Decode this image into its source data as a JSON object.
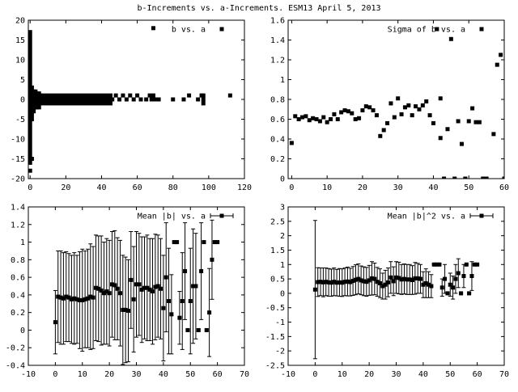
{
  "page_title": "b-Increments vs. a-Increments. ESM13 April 5, 2013",
  "chart_data": [
    {
      "type": "scatter",
      "title": "b vs. a",
      "legend_position": "top-right",
      "legend_marker_only": true,
      "xlim": [
        -1,
        120
      ],
      "ylim": [
        -20,
        20
      ],
      "xticks": [
        0,
        20,
        40,
        60,
        80,
        100,
        120
      ],
      "yticks": [
        -20,
        -15,
        -10,
        -5,
        0,
        5,
        10,
        15,
        20
      ],
      "grid": false,
      "series": [
        {
          "name": "b vs. a",
          "dense_columns": [
            {
              "x": 0,
              "ymin": -16,
              "ymax": 17
            },
            {
              "x": 1,
              "ymin": -5,
              "ymax": 3
            },
            {
              "x": 2,
              "ymin": -3,
              "ymax": 2
            },
            {
              "x": 3,
              "ymin": -2,
              "ymax": 2
            },
            {
              "x": 4,
              "ymin": -2,
              "ymax": 1.5
            },
            {
              "x": 5,
              "ymin": -2,
              "ymax": 1.5
            }
          ],
          "band": {
            "xmin": 5,
            "xmax": 45,
            "ymin": -1,
            "ymax": 1
          },
          "points": [
            [
              0,
              -18
            ],
            [
              1,
              -15
            ],
            [
              0,
              2
            ],
            [
              2,
              -1
            ],
            [
              69,
              18
            ],
            [
              46,
              0
            ],
            [
              48,
              1
            ],
            [
              50,
              0
            ],
            [
              52,
              1
            ],
            [
              54,
              0
            ],
            [
              56,
              1
            ],
            [
              58,
              0
            ],
            [
              60,
              1
            ],
            [
              62,
              0
            ],
            [
              65,
              0
            ],
            [
              67,
              1
            ],
            [
              68,
              0
            ],
            [
              69,
              1
            ],
            [
              70,
              0
            ],
            [
              72,
              0
            ],
            [
              80,
              0
            ],
            [
              86,
              0
            ],
            [
              89,
              1
            ],
            [
              94,
              0
            ],
            [
              96,
              1
            ],
            [
              97,
              0
            ],
            [
              97,
              -1
            ],
            [
              97,
              1
            ],
            [
              112,
              1
            ]
          ]
        }
      ]
    },
    {
      "type": "scatter",
      "title": "Sigma of b vs. a",
      "legend_position": "top-right",
      "legend_marker_only": true,
      "xlim": [
        -1,
        60
      ],
      "ylim": [
        0,
        1.6
      ],
      "xticks": [
        0,
        10,
        20,
        30,
        40,
        50,
        60
      ],
      "yticks": [
        0,
        0.2,
        0.4,
        0.6,
        0.8,
        1,
        1.2,
        1.4,
        1.6
      ],
      "grid": false,
      "series": [
        {
          "name": "Sigma of b vs. a",
          "points": [
            [
              0,
              0.36
            ],
            [
              1,
              0.63
            ],
            [
              2,
              0.6
            ],
            [
              3,
              0.62
            ],
            [
              4,
              0.63
            ],
            [
              5,
              0.59
            ],
            [
              6,
              0.61
            ],
            [
              7,
              0.6
            ],
            [
              8,
              0.58
            ],
            [
              9,
              0.62
            ],
            [
              10,
              0.57
            ],
            [
              11,
              0.6
            ],
            [
              12,
              0.65
            ],
            [
              13,
              0.6
            ],
            [
              14,
              0.67
            ],
            [
              15,
              0.69
            ],
            [
              16,
              0.68
            ],
            [
              17,
              0.66
            ],
            [
              18,
              0.6
            ],
            [
              19,
              0.61
            ],
            [
              20,
              0.69
            ],
            [
              21,
              0.73
            ],
            [
              22,
              0.72
            ],
            [
              23,
              0.69
            ],
            [
              24,
              0.64
            ],
            [
              25,
              0.43
            ],
            [
              26,
              0.49
            ],
            [
              27,
              0.56
            ],
            [
              28,
              0.76
            ],
            [
              29,
              0.62
            ],
            [
              30,
              0.81
            ],
            [
              31,
              0.65
            ],
            [
              32,
              0.72
            ],
            [
              33,
              0.74
            ],
            [
              34,
              0.64
            ],
            [
              35,
              0.73
            ],
            [
              36,
              0.7
            ],
            [
              37,
              0.74
            ],
            [
              38,
              0.78
            ],
            [
              39,
              0.64
            ],
            [
              40,
              0.56
            ],
            [
              41,
              1.51
            ],
            [
              42,
              0.81
            ],
            [
              42,
              0.41
            ],
            [
              43,
              0.0
            ],
            [
              44,
              0.5
            ],
            [
              45,
              1.41
            ],
            [
              46,
              0.0
            ],
            [
              47,
              0.58
            ],
            [
              48,
              0.35
            ],
            [
              49,
              0.0
            ],
            [
              50,
              0.58
            ],
            [
              51,
              0.71
            ],
            [
              52,
              0.57
            ],
            [
              53,
              0.57
            ],
            [
              54,
              0.0
            ],
            [
              55,
              0.0
            ],
            [
              57,
              0.45
            ],
            [
              58,
              1.15
            ],
            [
              59,
              1.25
            ],
            [
              60,
              0.0
            ]
          ]
        }
      ]
    },
    {
      "type": "scatter",
      "title": "",
      "legend_position": "top-right",
      "xlim": [
        -10,
        70
      ],
      "ylim": [
        -0.4,
        1.4
      ],
      "xticks": [
        -10,
        0,
        10,
        20,
        30,
        40,
        50,
        60,
        70
      ],
      "yticks": [
        -0.4,
        -0.2,
        0,
        0.2,
        0.4,
        0.6,
        0.8,
        1,
        1.2,
        1.4
      ],
      "grid": false,
      "series": [
        {
          "name": "Mean |b| vs. a",
          "error_bars": true,
          "points": [
            [
              0,
              0.09,
              0.36
            ],
            [
              1,
              0.38,
              0.52
            ],
            [
              2,
              0.37,
              0.53
            ],
            [
              3,
              0.36,
              0.52
            ],
            [
              4,
              0.38,
              0.51
            ],
            [
              5,
              0.37,
              0.5
            ],
            [
              6,
              0.35,
              0.5
            ],
            [
              7,
              0.36,
              0.52
            ],
            [
              8,
              0.35,
              0.5
            ],
            [
              9,
              0.34,
              0.55
            ],
            [
              10,
              0.34,
              0.58
            ],
            [
              11,
              0.35,
              0.55
            ],
            [
              12,
              0.36,
              0.56
            ],
            [
              13,
              0.38,
              0.6
            ],
            [
              14,
              0.37,
              0.58
            ],
            [
              15,
              0.48,
              0.6
            ],
            [
              16,
              0.47,
              0.6
            ],
            [
              17,
              0.45,
              0.62
            ],
            [
              18,
              0.42,
              0.58
            ],
            [
              19,
              0.44,
              0.6
            ],
            [
              20,
              0.42,
              0.6
            ],
            [
              21,
              0.52,
              0.6
            ],
            [
              22,
              0.51,
              0.62
            ],
            [
              23,
              0.47,
              0.58
            ],
            [
              24,
              0.42,
              0.6
            ],
            [
              25,
              0.23,
              0.62
            ],
            [
              26,
              0.23,
              0.6
            ],
            [
              27,
              0.22,
              0.58
            ],
            [
              28,
              0.57,
              0.55
            ],
            [
              29,
              0.35,
              0.6
            ],
            [
              30,
              0.52,
              0.6
            ],
            [
              31,
              0.52,
              0.58
            ],
            [
              32,
              0.46,
              0.6
            ],
            [
              33,
              0.48,
              0.58
            ],
            [
              34,
              0.48,
              0.6
            ],
            [
              35,
              0.46,
              0.58
            ],
            [
              36,
              0.44,
              0.6
            ],
            [
              37,
              0.49,
              0.6
            ],
            [
              38,
              0.5,
              0.58
            ],
            [
              39,
              0.47,
              0.57
            ],
            [
              40,
              0.25,
              0.6
            ],
            [
              41,
              0.6,
              0.62
            ],
            [
              42,
              0.33,
              0.6
            ],
            [
              43,
              0.18,
              0.45
            ],
            [
              44,
              1.0,
              0.01
            ],
            [
              45,
              1.0,
              0.01
            ],
            [
              46,
              0.14,
              0.3
            ],
            [
              47,
              0.33,
              0.55
            ],
            [
              48,
              0.67,
              0.55
            ],
            [
              49,
              0.0,
              0.01
            ],
            [
              50,
              0.33,
              0.6
            ],
            [
              51,
              0.5,
              0.65
            ],
            [
              52,
              0.5,
              0.6
            ],
            [
              53,
              0.0,
              0.01
            ],
            [
              54,
              0.67,
              0.55
            ],
            [
              55,
              1.0,
              0.01
            ],
            [
              56,
              0.0,
              0.01
            ],
            [
              57,
              0.2,
              0.5
            ],
            [
              58,
              0.8,
              0.45
            ],
            [
              59,
              1.0,
              0.01
            ],
            [
              60,
              1.0,
              0.01
            ]
          ]
        }
      ]
    },
    {
      "type": "scatter",
      "title": "",
      "legend_position": "top-right",
      "xlim": [
        -10,
        70
      ],
      "ylim": [
        -2.5,
        3
      ],
      "xticks": [
        -10,
        0,
        10,
        20,
        30,
        40,
        50,
        60,
        70
      ],
      "yticks": [
        -2.5,
        -2,
        -1.5,
        -1,
        -0.5,
        0,
        0.5,
        1,
        1.5,
        2,
        2.5,
        3
      ],
      "grid": false,
      "series": [
        {
          "name": "Mean |b|^2 vs. a",
          "error_bars": true,
          "points": [
            [
              0,
              0.13,
              2.4
            ],
            [
              1,
              0.39,
              0.5
            ],
            [
              2,
              0.4,
              0.48
            ],
            [
              3,
              0.38,
              0.5
            ],
            [
              4,
              0.4,
              0.48
            ],
            [
              5,
              0.38,
              0.48
            ],
            [
              6,
              0.37,
              0.47
            ],
            [
              7,
              0.4,
              0.48
            ],
            [
              8,
              0.37,
              0.46
            ],
            [
              9,
              0.38,
              0.48
            ],
            [
              10,
              0.37,
              0.48
            ],
            [
              11,
              0.4,
              0.48
            ],
            [
              12,
              0.41,
              0.5
            ],
            [
              13,
              0.39,
              0.48
            ],
            [
              14,
              0.43,
              0.5
            ],
            [
              15,
              0.47,
              0.52
            ],
            [
              16,
              0.5,
              0.52
            ],
            [
              17,
              0.45,
              0.5
            ],
            [
              18,
              0.42,
              0.5
            ],
            [
              19,
              0.4,
              0.5
            ],
            [
              20,
              0.45,
              0.52
            ],
            [
              21,
              0.52,
              0.58
            ],
            [
              22,
              0.5,
              0.55
            ],
            [
              23,
              0.4,
              0.5
            ],
            [
              24,
              0.35,
              0.5
            ],
            [
              25,
              0.25,
              0.45
            ],
            [
              26,
              0.3,
              0.5
            ],
            [
              27,
              0.38,
              0.5
            ],
            [
              28,
              0.55,
              0.55
            ],
            [
              29,
              0.42,
              0.5
            ],
            [
              30,
              0.55,
              0.55
            ],
            [
              31,
              0.53,
              0.55
            ],
            [
              32,
              0.48,
              0.52
            ],
            [
              33,
              0.5,
              0.52
            ],
            [
              34,
              0.48,
              0.52
            ],
            [
              35,
              0.48,
              0.52
            ],
            [
              36,
              0.46,
              0.5
            ],
            [
              37,
              0.52,
              0.55
            ],
            [
              38,
              0.52,
              0.52
            ],
            [
              39,
              0.5,
              0.5
            ],
            [
              40,
              0.3,
              0.45
            ],
            [
              41,
              0.35,
              0.5
            ],
            [
              42,
              0.3,
              0.45
            ],
            [
              43,
              0.25,
              0.4
            ],
            [
              44,
              1.0,
              0.02
            ],
            [
              45,
              1.0,
              0.02
            ],
            [
              46,
              1.0,
              0.02
            ],
            [
              47,
              0.2,
              0.3
            ],
            [
              48,
              0.5,
              0.5
            ],
            [
              49,
              0.0,
              0.02
            ],
            [
              50,
              0.3,
              0.4
            ],
            [
              51,
              0.2,
              0.4
            ],
            [
              52,
              0.5,
              0.5
            ],
            [
              53,
              0.7,
              0.5
            ],
            [
              54,
              0.0,
              0.02
            ],
            [
              55,
              0.6,
              0.4
            ],
            [
              56,
              1.0,
              0.02
            ],
            [
              57,
              0.0,
              0.02
            ],
            [
              58,
              0.6,
              0.5
            ],
            [
              59,
              1.0,
              0.02
            ],
            [
              60,
              1.0,
              0.02
            ]
          ]
        }
      ]
    }
  ]
}
